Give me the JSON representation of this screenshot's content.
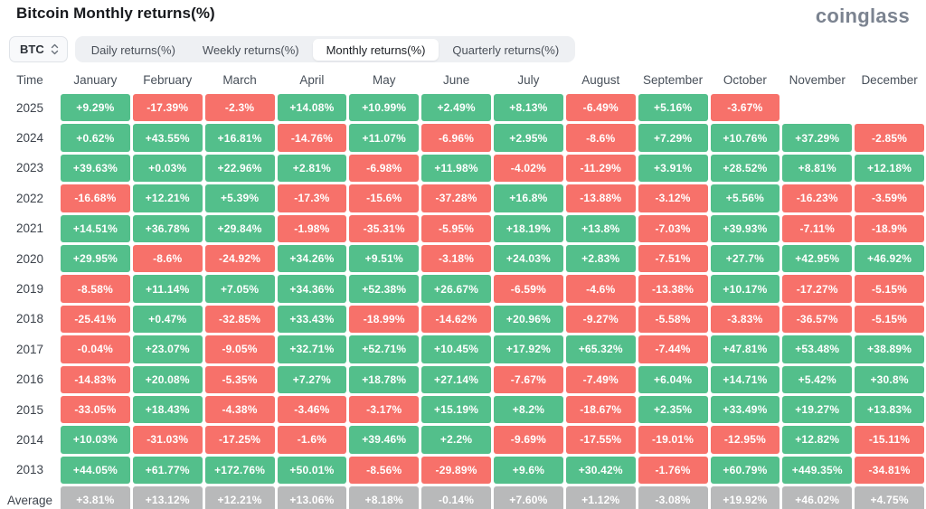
{
  "header": {
    "title": "Bitcoin Monthly returns(%)",
    "logo": "coinglass"
  },
  "controls": {
    "symbol_select": {
      "value": "BTC"
    },
    "tabs": [
      {
        "label": "Daily returns(%)",
        "active": false
      },
      {
        "label": "Weekly returns(%)",
        "active": false
      },
      {
        "label": "Monthly returns(%)",
        "active": true
      },
      {
        "label": "Quarterly returns(%)",
        "active": false
      }
    ]
  },
  "colors": {
    "positive": "#53bf8b",
    "negative": "#f7716a",
    "average": "#b8b9ba"
  },
  "table": {
    "time_header": "Time",
    "columns": [
      "January",
      "February",
      "March",
      "April",
      "May",
      "June",
      "July",
      "August",
      "September",
      "October",
      "November",
      "December"
    ],
    "rows": [
      {
        "time": "2025",
        "values": [
          "+9.29%",
          "-17.39%",
          "-2.3%",
          "+14.08%",
          "+10.99%",
          "+2.49%",
          "+8.13%",
          "-6.49%",
          "+5.16%",
          "-3.67%",
          null,
          null
        ]
      },
      {
        "time": "2024",
        "values": [
          "+0.62%",
          "+43.55%",
          "+16.81%",
          "-14.76%",
          "+11.07%",
          "-6.96%",
          "+2.95%",
          "-8.6%",
          "+7.29%",
          "+10.76%",
          "+37.29%",
          "-2.85%"
        ]
      },
      {
        "time": "2023",
        "values": [
          "+39.63%",
          "+0.03%",
          "+22.96%",
          "+2.81%",
          "-6.98%",
          "+11.98%",
          "-4.02%",
          "-11.29%",
          "+3.91%",
          "+28.52%",
          "+8.81%",
          "+12.18%"
        ]
      },
      {
        "time": "2022",
        "values": [
          "-16.68%",
          "+12.21%",
          "+5.39%",
          "-17.3%",
          "-15.6%",
          "-37.28%",
          "+16.8%",
          "-13.88%",
          "-3.12%",
          "+5.56%",
          "-16.23%",
          "-3.59%"
        ]
      },
      {
        "time": "2021",
        "values": [
          "+14.51%",
          "+36.78%",
          "+29.84%",
          "-1.98%",
          "-35.31%",
          "-5.95%",
          "+18.19%",
          "+13.8%",
          "-7.03%",
          "+39.93%",
          "-7.11%",
          "-18.9%"
        ]
      },
      {
        "time": "2020",
        "values": [
          "+29.95%",
          "-8.6%",
          "-24.92%",
          "+34.26%",
          "+9.51%",
          "-3.18%",
          "+24.03%",
          "+2.83%",
          "-7.51%",
          "+27.7%",
          "+42.95%",
          "+46.92%"
        ]
      },
      {
        "time": "2019",
        "values": [
          "-8.58%",
          "+11.14%",
          "+7.05%",
          "+34.36%",
          "+52.38%",
          "+26.67%",
          "-6.59%",
          "-4.6%",
          "-13.38%",
          "+10.17%",
          "-17.27%",
          "-5.15%"
        ]
      },
      {
        "time": "2018",
        "values": [
          "-25.41%",
          "+0.47%",
          "-32.85%",
          "+33.43%",
          "-18.99%",
          "-14.62%",
          "+20.96%",
          "-9.27%",
          "-5.58%",
          "-3.83%",
          "-36.57%",
          "-5.15%"
        ]
      },
      {
        "time": "2017",
        "values": [
          "-0.04%",
          "+23.07%",
          "-9.05%",
          "+32.71%",
          "+52.71%",
          "+10.45%",
          "+17.92%",
          "+65.32%",
          "-7.44%",
          "+47.81%",
          "+53.48%",
          "+38.89%"
        ]
      },
      {
        "time": "2016",
        "values": [
          "-14.83%",
          "+20.08%",
          "-5.35%",
          "+7.27%",
          "+18.78%",
          "+27.14%",
          "-7.67%",
          "-7.49%",
          "+6.04%",
          "+14.71%",
          "+5.42%",
          "+30.8%"
        ]
      },
      {
        "time": "2015",
        "values": [
          "-33.05%",
          "+18.43%",
          "-4.38%",
          "-3.46%",
          "-3.17%",
          "+15.19%",
          "+8.2%",
          "-18.67%",
          "+2.35%",
          "+33.49%",
          "+19.27%",
          "+13.83%"
        ]
      },
      {
        "time": "2014",
        "values": [
          "+10.03%",
          "-31.03%",
          "-17.25%",
          "-1.6%",
          "+39.46%",
          "+2.2%",
          "-9.69%",
          "-17.55%",
          "-19.01%",
          "-12.95%",
          "+12.82%",
          "-15.11%"
        ]
      },
      {
        "time": "2013",
        "values": [
          "+44.05%",
          "+61.77%",
          "+172.76%",
          "+50.01%",
          "-8.56%",
          "-29.89%",
          "+9.6%",
          "+30.42%",
          "-1.76%",
          "+60.79%",
          "+449.35%",
          "-34.81%"
        ]
      }
    ],
    "average": {
      "time": "Average",
      "values": [
        "+3.81%",
        "+13.12%",
        "+12.21%",
        "+13.06%",
        "+8.18%",
        "-0.14%",
        "+7.60%",
        "+1.12%",
        "-3.08%",
        "+19.92%",
        "+46.02%",
        "+4.75%"
      ]
    }
  },
  "chart_data": {
    "type": "heatmap",
    "title": "Bitcoin Monthly returns(%)",
    "unit": "%",
    "x_labels": [
      "January",
      "February",
      "March",
      "April",
      "May",
      "June",
      "July",
      "August",
      "September",
      "October",
      "November",
      "December"
    ],
    "y_labels": [
      "2025",
      "2024",
      "2023",
      "2022",
      "2021",
      "2020",
      "2019",
      "2018",
      "2017",
      "2016",
      "2015",
      "2014",
      "2013",
      "Average"
    ],
    "values": [
      [
        9.29,
        -17.39,
        -2.3,
        14.08,
        10.99,
        2.49,
        8.13,
        -6.49,
        5.16,
        -3.67,
        null,
        null
      ],
      [
        0.62,
        43.55,
        16.81,
        -14.76,
        11.07,
        -6.96,
        2.95,
        -8.6,
        7.29,
        10.76,
        37.29,
        -2.85
      ],
      [
        39.63,
        0.03,
        22.96,
        2.81,
        -6.98,
        11.98,
        -4.02,
        -11.29,
        3.91,
        28.52,
        8.81,
        12.18
      ],
      [
        -16.68,
        12.21,
        5.39,
        -17.3,
        -15.6,
        -37.28,
        16.8,
        -13.88,
        -3.12,
        5.56,
        -16.23,
        -3.59
      ],
      [
        14.51,
        36.78,
        29.84,
        -1.98,
        -35.31,
        -5.95,
        18.19,
        13.8,
        -7.03,
        39.93,
        -7.11,
        -18.9
      ],
      [
        29.95,
        -8.6,
        -24.92,
        34.26,
        9.51,
        -3.18,
        24.03,
        2.83,
        -7.51,
        27.7,
        42.95,
        46.92
      ],
      [
        -8.58,
        11.14,
        7.05,
        34.36,
        52.38,
        26.67,
        -6.59,
        -4.6,
        -13.38,
        10.17,
        -17.27,
        -5.15
      ],
      [
        -25.41,
        0.47,
        -32.85,
        33.43,
        -18.99,
        -14.62,
        20.96,
        -9.27,
        -5.58,
        -3.83,
        -36.57,
        -5.15
      ],
      [
        -0.04,
        23.07,
        -9.05,
        32.71,
        52.71,
        10.45,
        17.92,
        65.32,
        -7.44,
        47.81,
        53.48,
        38.89
      ],
      [
        -14.83,
        20.08,
        -5.35,
        7.27,
        18.78,
        27.14,
        -7.67,
        -7.49,
        6.04,
        14.71,
        5.42,
        30.8
      ],
      [
        -33.05,
        18.43,
        -4.38,
        -3.46,
        -3.17,
        15.19,
        8.2,
        -18.67,
        2.35,
        33.49,
        19.27,
        13.83
      ],
      [
        10.03,
        -31.03,
        -17.25,
        -1.6,
        39.46,
        2.2,
        -9.69,
        -17.55,
        -19.01,
        -12.95,
        12.82,
        -15.11
      ],
      [
        44.05,
        61.77,
        172.76,
        50.01,
        -8.56,
        -29.89,
        9.6,
        30.42,
        -1.76,
        60.79,
        449.35,
        -34.81
      ],
      [
        3.81,
        13.12,
        12.21,
        13.06,
        8.18,
        -0.14,
        7.6,
        1.12,
        -3.08,
        19.92,
        46.02,
        4.75
      ]
    ],
    "color_rule": "positive=green, negative=red, Average row=gray",
    "legend": "none",
    "grid": "cell gaps white"
  }
}
